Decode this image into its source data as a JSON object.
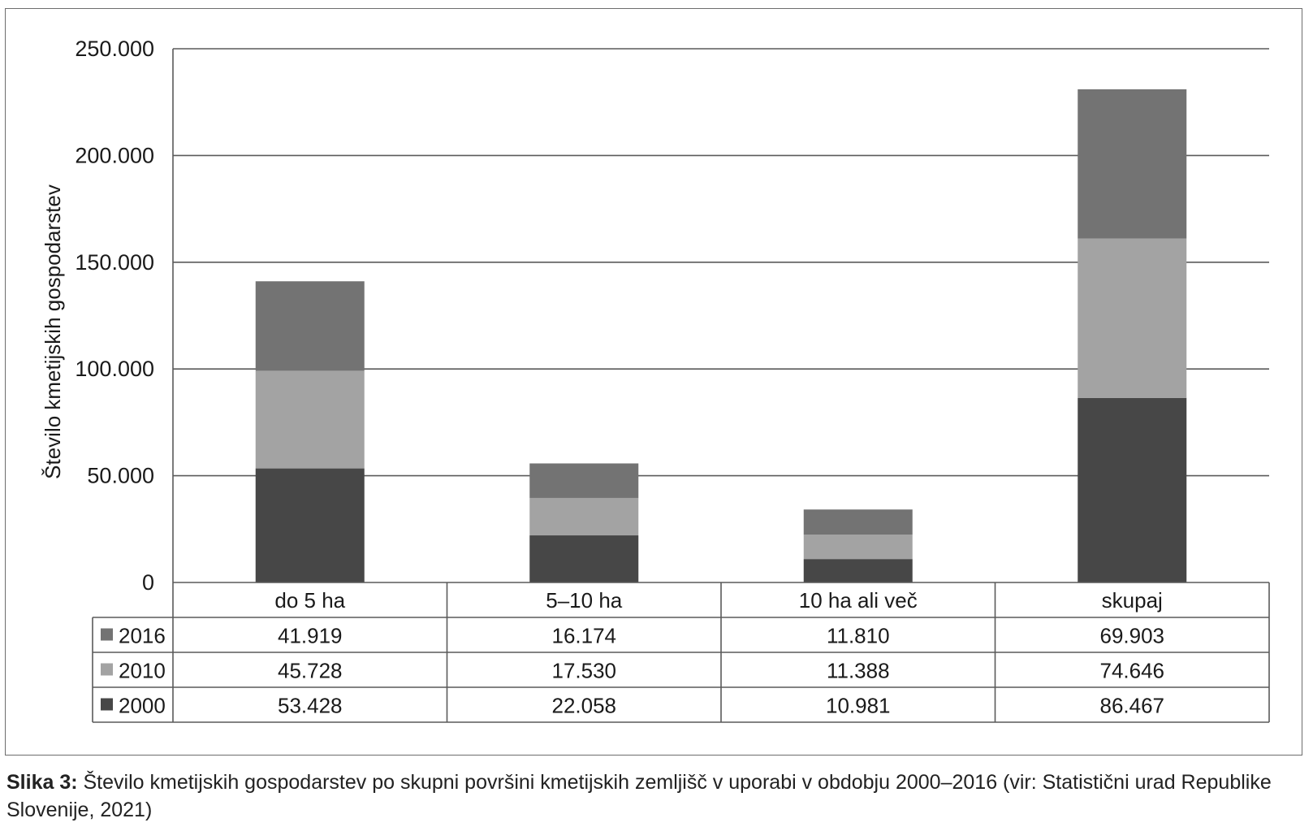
{
  "chart_data": {
    "type": "bar",
    "stacked": true,
    "ylabel": "Število kmetijskih gospodarstev",
    "ylim": [
      0,
      250000
    ],
    "yticks": [
      0,
      50000,
      100000,
      150000,
      200000,
      250000
    ],
    "ytick_labels": [
      "0",
      "50.000",
      "100.000",
      "150.000",
      "200.000",
      "250.000"
    ],
    "grid": true,
    "legend": "data-table",
    "categories": [
      "do 5 ha",
      "5–10 ha",
      "10 ha ali več",
      "skupaj"
    ],
    "series": [
      {
        "name": "2000",
        "color": "#474747",
        "values": [
          53428,
          22058,
          10981,
          86467
        ],
        "labels": [
          "53.428",
          "22.058",
          "10.981",
          "86.467"
        ]
      },
      {
        "name": "2010",
        "color": "#a3a3a3",
        "values": [
          45728,
          17530,
          11388,
          74646
        ],
        "labels": [
          "45.728",
          "17.530",
          "11.388",
          "74.646"
        ]
      },
      {
        "name": "2016",
        "color": "#737373",
        "values": [
          41919,
          16174,
          11810,
          69903
        ],
        "labels": [
          "41.919",
          "16.174",
          "11.810",
          "69.903"
        ]
      }
    ],
    "table_row_order": [
      "2016",
      "2010",
      "2000"
    ]
  },
  "caption": {
    "label": "Slika 3:",
    "text": " Število kmetijskih gospodarstev po skupni površini kmetijskih zemljišč v uporabi v obdobju 2000–2016 (vir: Statistični urad Republike Slovenije, 2021)"
  }
}
